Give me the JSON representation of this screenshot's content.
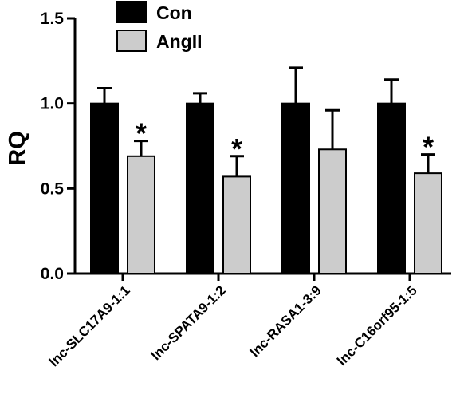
{
  "chart_data": {
    "type": "bar",
    "ylabel": "RQ",
    "xlabel": "",
    "ylim": [
      0,
      1.5
    ],
    "yticks": [
      "0.0",
      "0.5",
      "1.0",
      "1.5"
    ],
    "categories": [
      "lnc-SLC17A9-1:1",
      "lnc-SPATA9-1:2",
      "lnc-RASA1-3:9",
      "lnc-C16orf95-1:5"
    ],
    "series": [
      {
        "name": "Con",
        "color": "#000000",
        "values": [
          1.0,
          1.0,
          1.0,
          1.0
        ],
        "errors": [
          0.09,
          0.06,
          0.21,
          0.14
        ]
      },
      {
        "name": "AngII",
        "color": "#cccccc",
        "values": [
          0.69,
          0.57,
          0.73,
          0.59
        ],
        "errors": [
          0.09,
          0.12,
          0.23,
          0.11
        ]
      }
    ],
    "significance": [
      {
        "series": "AngII",
        "category_index": 0,
        "mark": "*"
      },
      {
        "series": "AngII",
        "category_index": 1,
        "mark": "*"
      },
      {
        "series": "AngII",
        "category_index": 3,
        "mark": "*"
      }
    ],
    "legend": {
      "placement": "top-center"
    },
    "grid": false
  }
}
